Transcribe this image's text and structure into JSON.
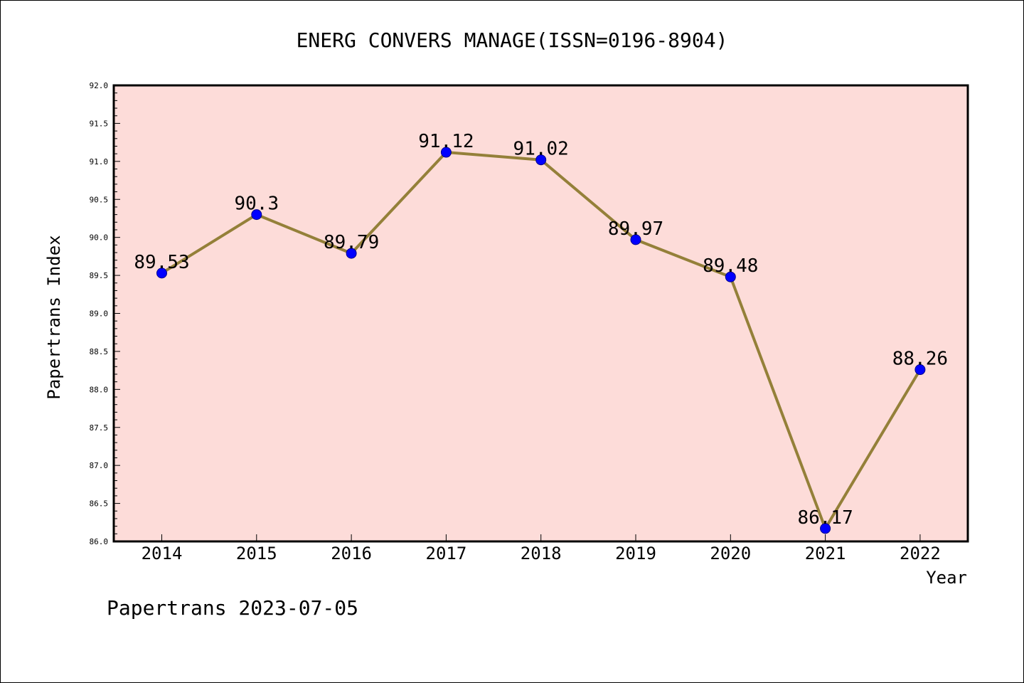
{
  "chart_data": {
    "type": "line",
    "title": "ENERG CONVERS MANAGE(ISSN=0196-8904)",
    "xlabel": "Year",
    "ylabel": "Papertrans Index",
    "categories": [
      "2014",
      "2015",
      "2016",
      "2017",
      "2018",
      "2019",
      "2020",
      "2021",
      "2022"
    ],
    "values": [
      89.53,
      90.3,
      89.79,
      91.12,
      91.02,
      89.97,
      89.48,
      86.17,
      88.26
    ],
    "data_labels": [
      "89.53",
      "90.3",
      "89.79",
      "91.12",
      "91.02",
      "89.97",
      "89.48",
      "86.17",
      "88.26"
    ],
    "ylim": [
      86.0,
      92.0
    ],
    "yticks": [
      "86.0",
      "86.5",
      "87.0",
      "87.5",
      "88.0",
      "88.5",
      "89.0",
      "89.5",
      "90.0",
      "90.5",
      "91.0",
      "91.5",
      "92.0"
    ],
    "grid": false,
    "legend": "none",
    "colors": {
      "plot_background": "#fddcd9",
      "line": "#948039",
      "marker": "#0000ff"
    }
  },
  "footer": "Papertrans 2023-07-05"
}
